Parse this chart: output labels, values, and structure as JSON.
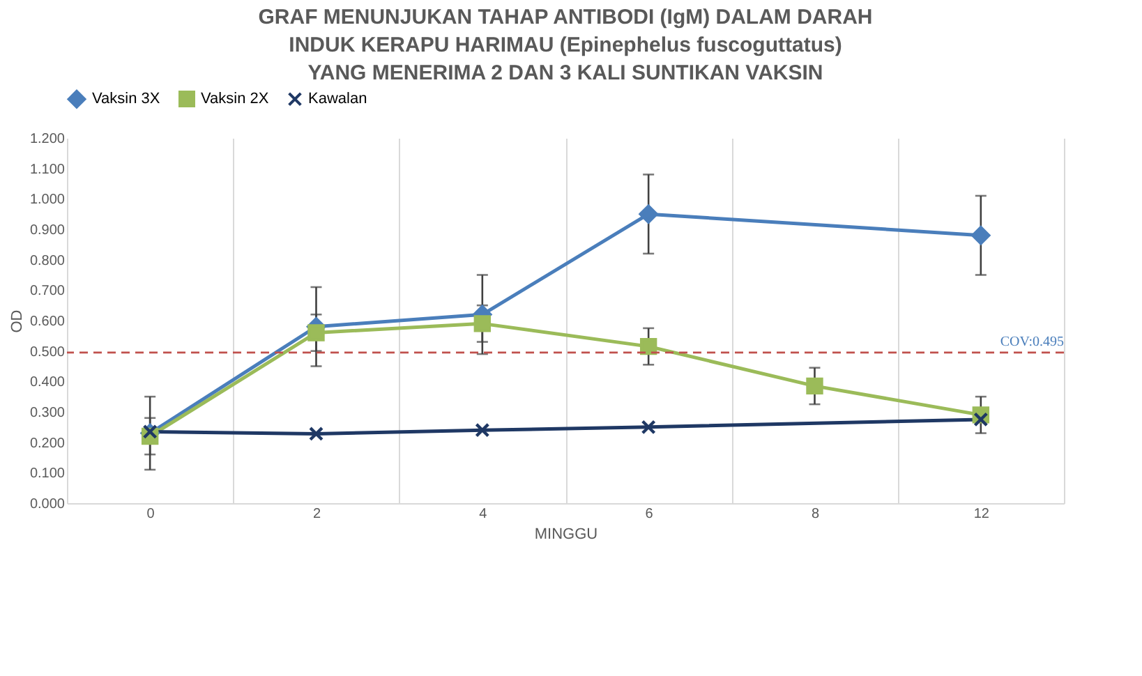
{
  "chart_data": {
    "type": "line",
    "title": "GRAF MENUNJUKAN TAHAP ANTIBODI (IgM) DALAM DARAH INDUK KERAPU HARIMAU (Epinephelus fuscoguttatus) YANG MENERIMA 2 DAN 3 KALI SUNTIKAN VAKSIN",
    "xlabel": "MINGGU",
    "ylabel": "OD",
    "categories": [
      "0",
      "2",
      "4",
      "6",
      "8",
      "12"
    ],
    "series": [
      {
        "name": "Vaksin 3X",
        "color": "#4a7ebb",
        "marker": "diamond",
        "values": [
          0.23,
          0.58,
          0.62,
          0.95,
          null,
          0.88
        ],
        "errors": [
          0.12,
          0.13,
          0.13,
          0.13,
          null,
          0.13
        ]
      },
      {
        "name": "Vaksin 2X",
        "color": "#9bbb59",
        "marker": "square",
        "values": [
          0.22,
          0.56,
          0.59,
          0.515,
          0.385,
          0.29
        ],
        "errors": [
          0.06,
          0.06,
          0.06,
          0.06,
          0.06,
          0.06
        ]
      },
      {
        "name": "Kawalan",
        "color": "#1f3864",
        "marker": "cross",
        "values": [
          0.235,
          0.228,
          0.24,
          0.25,
          null,
          0.275
        ]
      }
    ],
    "ylim": [
      0,
      1.2
    ],
    "yticks": [
      {
        "value": 0,
        "label": "0.000"
      },
      {
        "value": 0.1,
        "label": "0.100"
      },
      {
        "value": 0.2,
        "label": "0.200"
      },
      {
        "value": 0.3,
        "label": "0.300"
      },
      {
        "value": 0.4,
        "label": "0.400"
      },
      {
        "value": 0.5,
        "label": "0.500"
      },
      {
        "value": 0.6,
        "label": "0.600"
      },
      {
        "value": 0.7,
        "label": "0.700"
      },
      {
        "value": 0.8,
        "label": "0.800"
      },
      {
        "value": 0.9,
        "label": "0.900"
      },
      {
        "value": 1.0,
        "label": "1.000"
      },
      {
        "value": 1.1,
        "label": "1.100"
      },
      {
        "value": 1.2,
        "label": "1.200"
      }
    ],
    "ref_lines": [
      {
        "axis": "y",
        "value": 0.495,
        "label": "COV:0.495",
        "color": "#c0504d",
        "line_style": "dashed"
      }
    ],
    "grid": "x",
    "legend": "top",
    "line_style": "solid"
  }
}
